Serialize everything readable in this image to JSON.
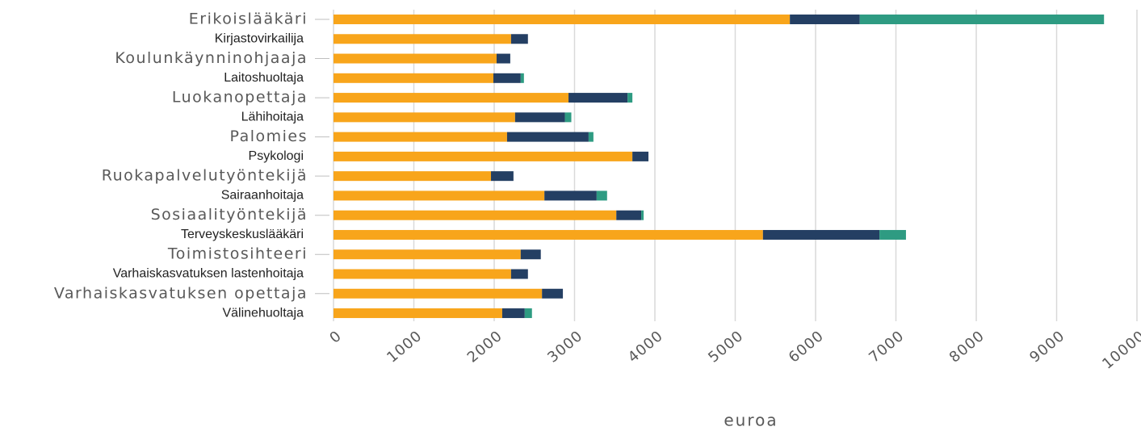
{
  "chart_data": {
    "type": "stacked-bar-horizontal",
    "x_label": "euroa",
    "categories": [
      "Erikoislääkäri",
      "Kirjastovirkailija",
      "Koulunkäynninohjaaja",
      "Laitoshuoltaja",
      "Luokanopettaja",
      "Lähihoitaja",
      "Palomies",
      "Psykologi",
      "Ruokapalvelutyöntekijä",
      "Sairaanhoitaja",
      "Sosiaalityöntekijä",
      "Terveyskeskuslääkäri",
      "Toimistosihteeri",
      "Varhaiskasvatuksen lastenhoitaja",
      "Varhaiskasvatuksen opettaja",
      "Välinehuoltaja"
    ],
    "series": [
      {
        "color": "#f8a51b",
        "values": [
          5680,
          2210,
          2030,
          1990,
          2925,
          2260,
          2160,
          3720,
          1960,
          2625,
          3520,
          5345,
          2330,
          2210,
          2595,
          2100
        ]
      },
      {
        "color": "#243f63",
        "values": [
          870,
          210,
          170,
          340,
          735,
          620,
          1015,
          200,
          280,
          650,
          310,
          1450,
          250,
          210,
          260,
          280
        ]
      },
      {
        "color": "#2e9b82",
        "values": [
          3040,
          0,
          0,
          40,
          60,
          80,
          60,
          0,
          0,
          130,
          30,
          330,
          0,
          0,
          0,
          90
        ]
      }
    ],
    "xlim": [
      0,
      10000
    ],
    "xticks": [
      0,
      1000,
      2000,
      3000,
      4000,
      5000,
      6000,
      7000,
      8000,
      9000,
      10000
    ],
    "grid": true
  }
}
